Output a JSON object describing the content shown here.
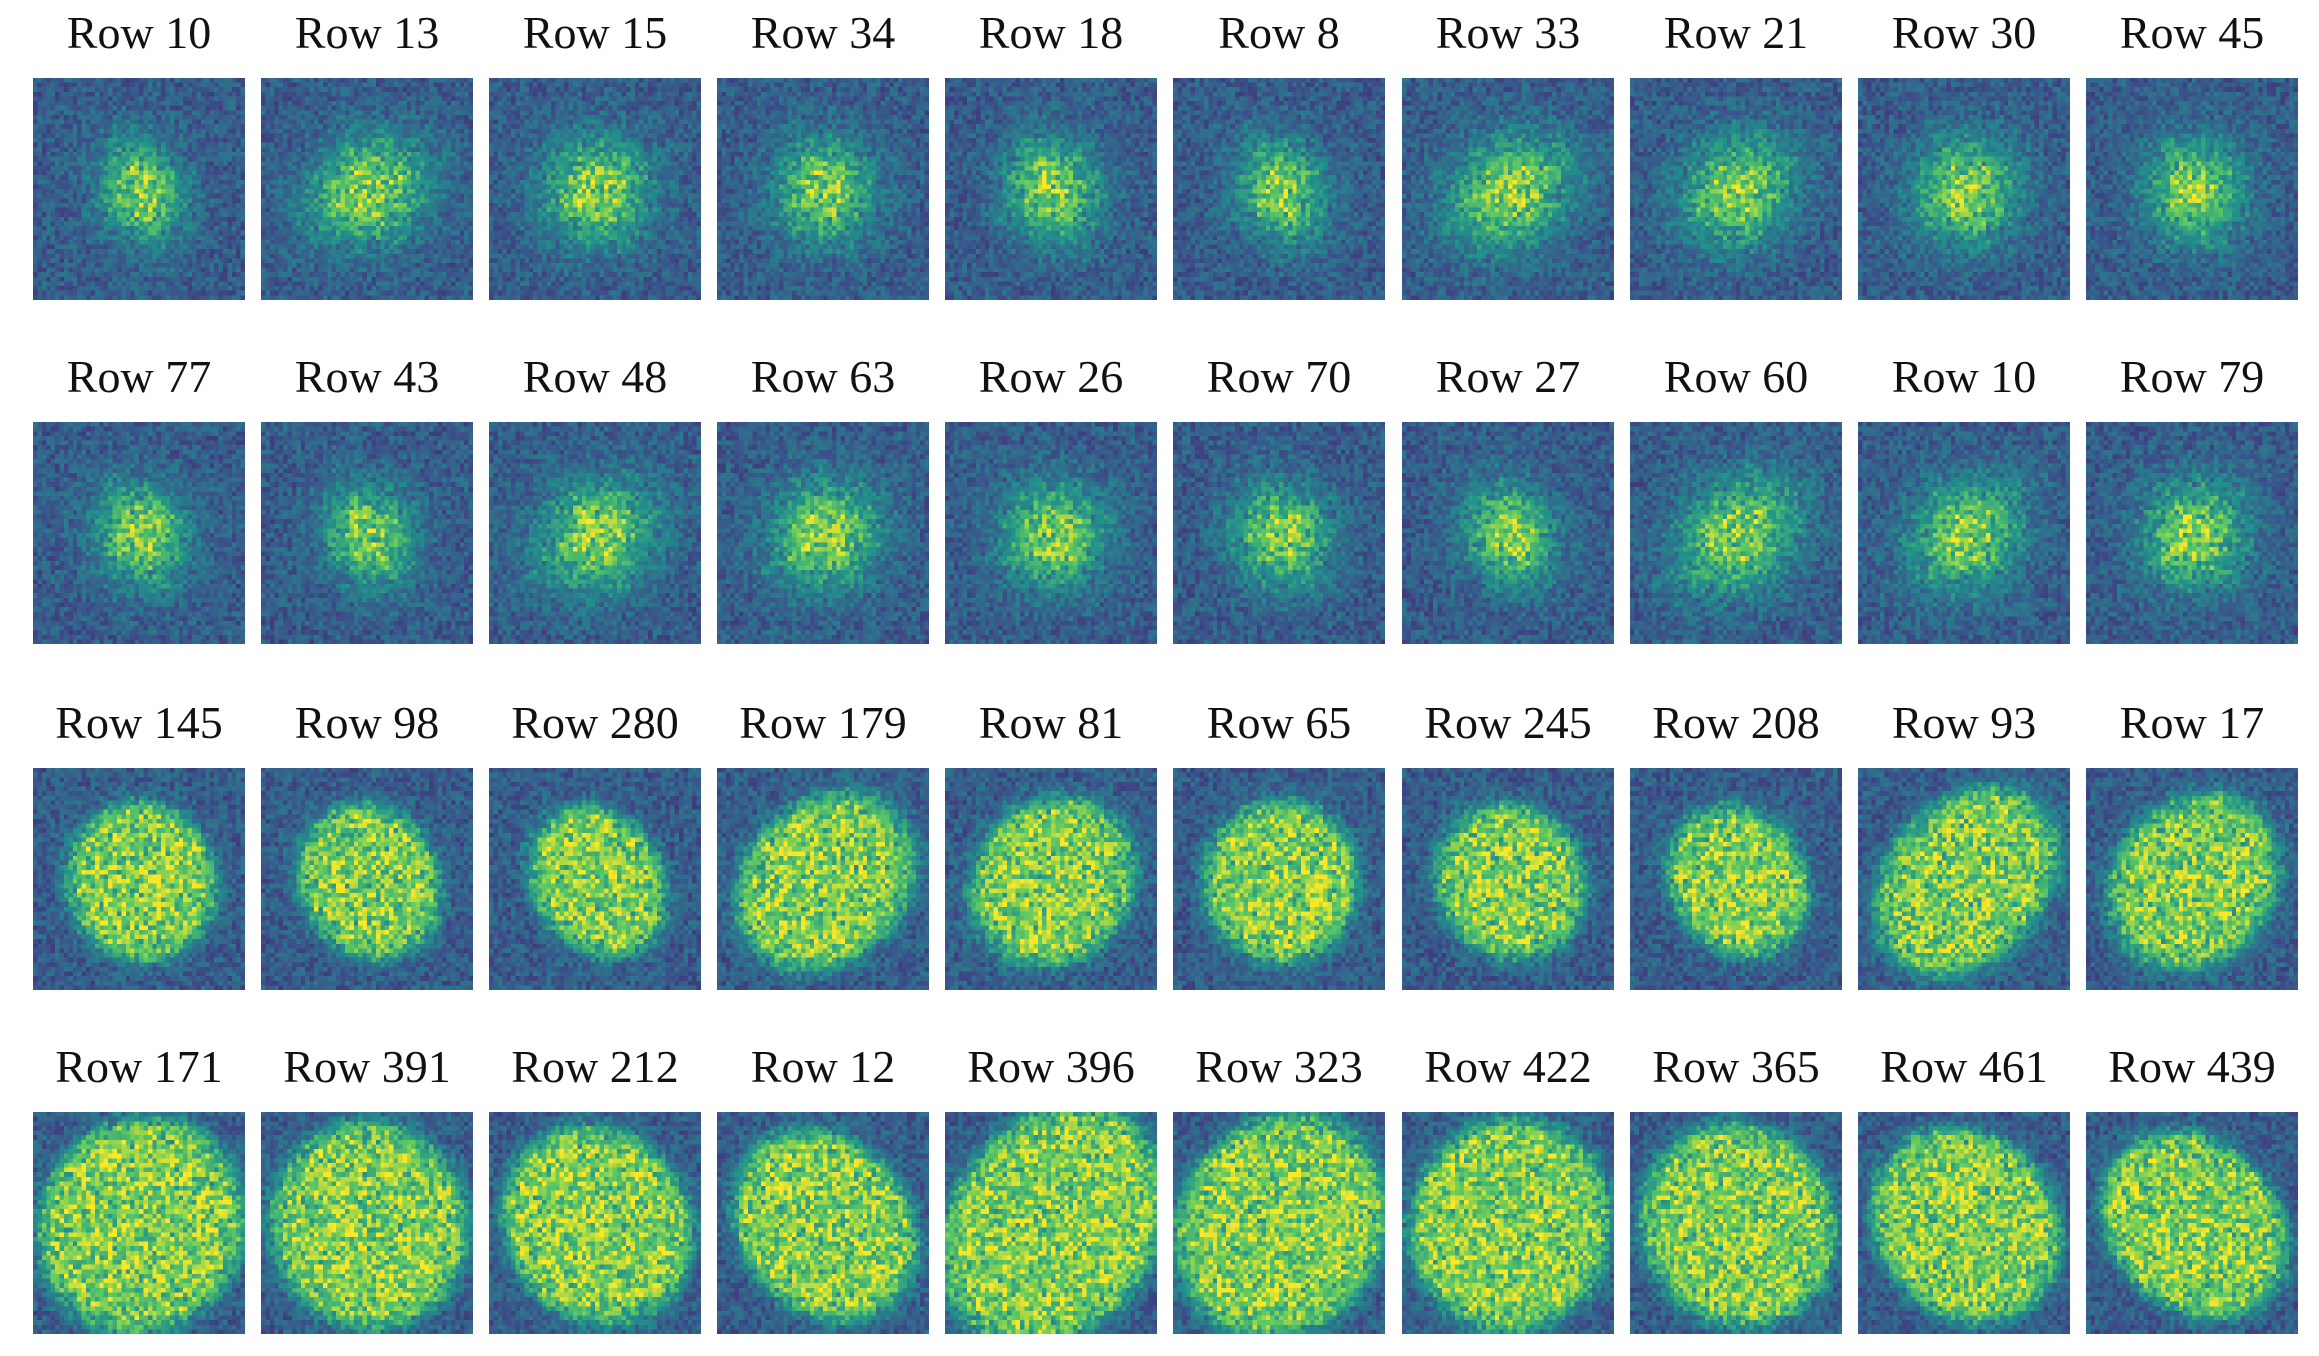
{
  "colormap": [
    "#440154",
    "#3b528b",
    "#21918c",
    "#5ec962",
    "#fde725"
  ],
  "rows": [
    {
      "pattern": "small-centered-speckle",
      "panels": [
        {
          "title": "Row 10"
        },
        {
          "title": "Row 13"
        },
        {
          "title": "Row 15"
        },
        {
          "title": "Row 34"
        },
        {
          "title": "Row 18"
        },
        {
          "title": "Row 8"
        },
        {
          "title": "Row 33"
        },
        {
          "title": "Row 21"
        },
        {
          "title": "Row 30"
        },
        {
          "title": "Row 45"
        }
      ]
    },
    {
      "pattern": "small-centered-speckle",
      "panels": [
        {
          "title": "Row 77"
        },
        {
          "title": "Row 43"
        },
        {
          "title": "Row 48"
        },
        {
          "title": "Row 63"
        },
        {
          "title": "Row 26"
        },
        {
          "title": "Row 70"
        },
        {
          "title": "Row 27"
        },
        {
          "title": "Row 60"
        },
        {
          "title": "Row 10"
        },
        {
          "title": "Row 79"
        }
      ]
    },
    {
      "pattern": "medium-disc-speckle",
      "panels": [
        {
          "title": "Row 145"
        },
        {
          "title": "Row 98"
        },
        {
          "title": "Row 280"
        },
        {
          "title": "Row 179"
        },
        {
          "title": "Row 81"
        },
        {
          "title": "Row 65"
        },
        {
          "title": "Row 245"
        },
        {
          "title": "Row 208"
        },
        {
          "title": "Row 93"
        },
        {
          "title": "Row 17"
        }
      ]
    },
    {
      "pattern": "large-disc-speckle",
      "panels": [
        {
          "title": "Row 171"
        },
        {
          "title": "Row 391"
        },
        {
          "title": "Row 212"
        },
        {
          "title": "Row 12"
        },
        {
          "title": "Row 396"
        },
        {
          "title": "Row 323"
        },
        {
          "title": "Row 422"
        },
        {
          "title": "Row 365"
        },
        {
          "title": "Row 461"
        },
        {
          "title": "Row 439"
        }
      ]
    }
  ]
}
